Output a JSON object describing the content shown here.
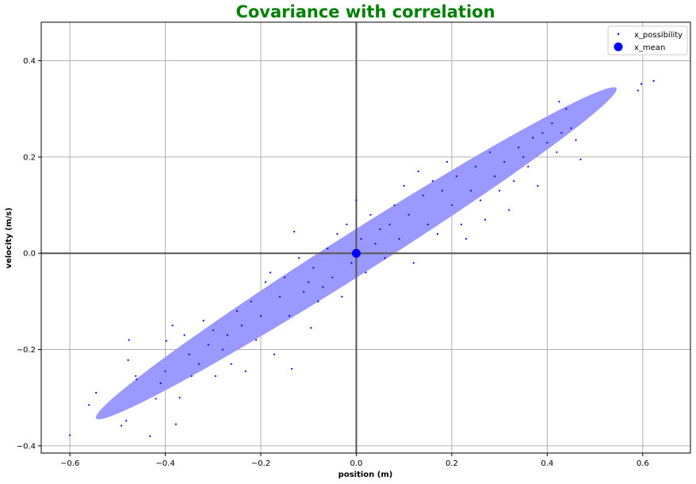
{
  "chart_data": {
    "type": "scatter",
    "title": "Covariance with correlation",
    "xlabel": "position (m)",
    "ylabel": "velocity (m/s)",
    "xlim": [
      -0.66,
      0.7
    ],
    "ylim": [
      -0.415,
      0.48
    ],
    "xticks": [
      -0.6,
      -0.4,
      -0.2,
      0.0,
      0.2,
      0.4,
      0.6
    ],
    "yticks": [
      -0.4,
      -0.2,
      0.0,
      0.2,
      0.4
    ],
    "xtick_labels": [
      "−0.6",
      "−0.4",
      "−0.2",
      "0.0",
      "0.2",
      "0.4",
      "0.6"
    ],
    "ytick_labels": [
      "−0.4",
      "−0.2",
      "0.0",
      "0.2",
      "0.4"
    ],
    "grid": true,
    "legend_position": "top-right",
    "ellipse": {
      "center": [
        0.0,
        0.0
      ],
      "semi_major_axis_direction_deg": 34,
      "endpoints": [
        [
          -0.545,
          -0.343
        ],
        [
          0.545,
          0.343
        ]
      ],
      "semi_minor_half_width": 0.028,
      "color": "#9999ff"
    },
    "series": [
      {
        "name": "x_possibility",
        "color": "#0000ff",
        "marker": "dot",
        "points": [
          [
            -0.6,
            -0.378
          ],
          [
            -0.56,
            -0.315
          ],
          [
            -0.545,
            -0.29
          ],
          [
            -0.492,
            -0.358
          ],
          [
            -0.482,
            -0.348
          ],
          [
            -0.478,
            -0.222
          ],
          [
            -0.476,
            -0.18
          ],
          [
            -0.462,
            -0.255
          ],
          [
            -0.46,
            -0.262
          ],
          [
            -0.432,
            -0.38
          ],
          [
            -0.42,
            -0.302
          ],
          [
            -0.41,
            -0.27
          ],
          [
            -0.4,
            -0.245
          ],
          [
            -0.398,
            -0.182
          ],
          [
            -0.385,
            -0.15
          ],
          [
            -0.378,
            -0.355
          ],
          [
            -0.37,
            -0.3
          ],
          [
            -0.36,
            -0.17
          ],
          [
            -0.35,
            -0.21
          ],
          [
            -0.345,
            -0.255
          ],
          [
            -0.33,
            -0.23
          ],
          [
            -0.32,
            -0.14
          ],
          [
            -0.31,
            -0.19
          ],
          [
            -0.3,
            -0.16
          ],
          [
            -0.295,
            -0.255
          ],
          [
            -0.28,
            -0.2
          ],
          [
            -0.27,
            -0.17
          ],
          [
            -0.262,
            -0.23
          ],
          [
            -0.25,
            -0.12
          ],
          [
            -0.24,
            -0.15
          ],
          [
            -0.232,
            -0.245
          ],
          [
            -0.22,
            -0.1
          ],
          [
            -0.21,
            -0.18
          ],
          [
            -0.2,
            -0.13
          ],
          [
            -0.19,
            -0.06
          ],
          [
            -0.18,
            -0.04
          ],
          [
            -0.172,
            -0.21
          ],
          [
            -0.16,
            -0.09
          ],
          [
            -0.15,
            -0.05
          ],
          [
            -0.14,
            -0.13
          ],
          [
            -0.135,
            -0.24
          ],
          [
            -0.13,
            0.045
          ],
          [
            -0.12,
            -0.01
          ],
          [
            -0.11,
            -0.08
          ],
          [
            -0.1,
            -0.06
          ],
          [
            -0.095,
            -0.155
          ],
          [
            -0.09,
            -0.03
          ],
          [
            -0.08,
            -0.1
          ],
          [
            -0.07,
            -0.07
          ],
          [
            -0.06,
            0.01
          ],
          [
            -0.05,
            -0.05
          ],
          [
            -0.04,
            0.04
          ],
          [
            -0.03,
            -0.09
          ],
          [
            -0.02,
            0.06
          ],
          [
            -0.01,
            -0.02
          ],
          [
            0.0,
            0.11
          ],
          [
            0.01,
            0.03
          ],
          [
            0.02,
            -0.04
          ],
          [
            0.03,
            0.08
          ],
          [
            0.04,
            0.02
          ],
          [
            0.05,
            0.05
          ],
          [
            0.06,
            -0.01
          ],
          [
            0.07,
            0.06
          ],
          [
            0.08,
            0.1
          ],
          [
            0.09,
            0.03
          ],
          [
            0.1,
            0.14
          ],
          [
            0.11,
            0.08
          ],
          [
            0.12,
            -0.02
          ],
          [
            0.13,
            0.17
          ],
          [
            0.14,
            0.12
          ],
          [
            0.15,
            0.06
          ],
          [
            0.16,
            0.15
          ],
          [
            0.17,
            0.04
          ],
          [
            0.18,
            0.13
          ],
          [
            0.19,
            0.19
          ],
          [
            0.2,
            0.1
          ],
          [
            0.21,
            0.16
          ],
          [
            0.22,
            0.06
          ],
          [
            0.23,
            0.03
          ],
          [
            0.24,
            0.13
          ],
          [
            0.25,
            0.18
          ],
          [
            0.26,
            0.11
          ],
          [
            0.27,
            0.07
          ],
          [
            0.28,
            0.21
          ],
          [
            0.29,
            0.16
          ],
          [
            0.3,
            0.13
          ],
          [
            0.31,
            0.19
          ],
          [
            0.32,
            0.09
          ],
          [
            0.33,
            0.15
          ],
          [
            0.34,
            0.22
          ],
          [
            0.35,
            0.2
          ],
          [
            0.36,
            0.18
          ],
          [
            0.37,
            0.24
          ],
          [
            0.38,
            0.14
          ],
          [
            0.39,
            0.25
          ],
          [
            0.4,
            0.23
          ],
          [
            0.41,
            0.27
          ],
          [
            0.42,
            0.21
          ],
          [
            0.425,
            0.315
          ],
          [
            0.43,
            0.25
          ],
          [
            0.44,
            0.3
          ],
          [
            0.45,
            0.26
          ],
          [
            0.46,
            0.235
          ],
          [
            0.47,
            0.195
          ],
          [
            0.59,
            0.338
          ],
          [
            0.597,
            0.352
          ],
          [
            0.623,
            0.358
          ]
        ]
      },
      {
        "name": "x_mean",
        "color": "#0000ff",
        "marker": "big-dot",
        "points": [
          [
            0.0,
            0.0
          ]
        ]
      }
    ]
  }
}
